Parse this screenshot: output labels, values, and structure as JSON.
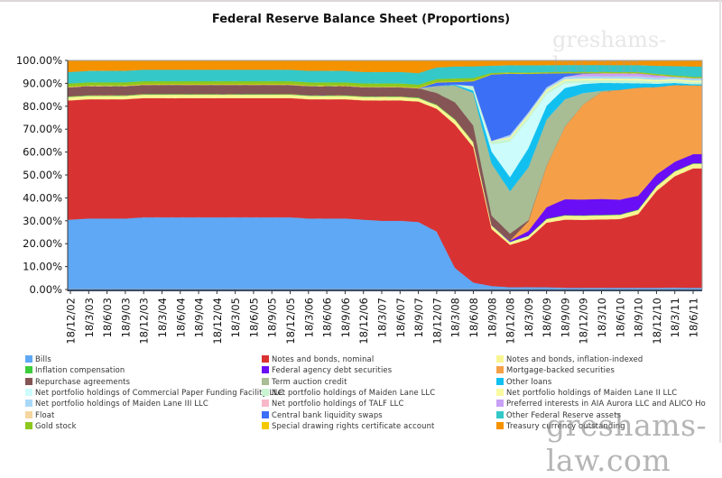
{
  "chart_data": {
    "type": "area",
    "stacked": true,
    "normalized": true,
    "title": "Federal Reserve Balance Sheet (Proportions)",
    "xlabel": "",
    "ylabel": "",
    "ylim": [
      0,
      100
    ],
    "y_ticks": [
      "0.00%",
      "10.00%",
      "20.00%",
      "30.00%",
      "40.00%",
      "50.00%",
      "60.00%",
      "70.00%",
      "80.00%",
      "90.00%",
      "100.00%"
    ],
    "grid": false,
    "legend_position": "bottom",
    "categories": [
      "18/12/02",
      "18/3/03",
      "18/6/03",
      "18/9/03",
      "18/12/03",
      "18/3/04",
      "18/6/04",
      "18/9/04",
      "18/12/04",
      "18/3/05",
      "18/6/05",
      "18/9/05",
      "18/12/05",
      "18/3/06",
      "18/6/06",
      "18/9/06",
      "18/12/06",
      "18/3/07",
      "18/6/07",
      "18/9/07",
      "18/12/07",
      "18/3/08",
      "18/6/08",
      "18/9/08",
      "18/12/08",
      "18/3/09",
      "18/6/09",
      "18/9/09",
      "18/12/09",
      "18/3/10",
      "18/6/10",
      "18/9/10",
      "18/12/10",
      "18/3/11",
      "18/6/11"
    ],
    "series": [
      {
        "name": "Bills",
        "color": "#5fa8f5",
        "values": [
          30.5,
          31,
          31,
          31,
          31.5,
          31.5,
          31.5,
          31.5,
          31.5,
          31.5,
          31.5,
          31.5,
          31.5,
          31,
          31,
          31,
          30.5,
          30,
          30,
          29.5,
          25,
          9,
          3,
          1.5,
          1,
          1,
          1,
          0.8,
          0.8,
          0.8,
          0.8,
          0.8,
          0.8,
          0.8,
          0.8
        ]
      },
      {
        "name": "Notes and bonds, nominal",
        "color": "#d93232",
        "values": [
          52,
          52,
          52,
          52,
          52,
          52,
          52,
          52,
          52,
          52,
          52,
          52,
          52,
          52,
          52,
          52,
          52,
          52.5,
          52.5,
          52.5,
          53,
          60,
          58,
          24,
          18,
          20,
          28,
          30,
          30,
          30,
          30,
          32,
          42,
          48,
          52
        ]
      },
      {
        "name": "Notes and bonds, inflation-indexed",
        "color": "#f7f591",
        "values": [
          1.5,
          1.5,
          1.5,
          1.5,
          1.5,
          1.5,
          1.5,
          1.5,
          1.5,
          1.5,
          1.5,
          1.5,
          1.5,
          1.5,
          1.5,
          1.5,
          1.5,
          1.5,
          1.5,
          1.5,
          1.5,
          2,
          2,
          1.5,
          1.2,
          1.3,
          1.5,
          1.8,
          1.8,
          1.8,
          1.8,
          1.8,
          2,
          2,
          2
        ]
      },
      {
        "name": "Inflation compensation",
        "color": "#3ccc3c",
        "values": [
          0.3,
          0.3,
          0.3,
          0.3,
          0.3,
          0.3,
          0.3,
          0.3,
          0.3,
          0.3,
          0.3,
          0.3,
          0.3,
          0.3,
          0.3,
          0.3,
          0.3,
          0.3,
          0.3,
          0.3,
          0.3,
          0.3,
          0.3,
          0.2,
          0.1,
          0.1,
          0.2,
          0.2,
          0.2,
          0.2,
          0.2,
          0.2,
          0.2,
          0.2,
          0.2
        ]
      },
      {
        "name": "Federal agency debt securities",
        "color": "#6a0ff5",
        "values": [
          0,
          0,
          0,
          0,
          0,
          0,
          0,
          0,
          0,
          0,
          0,
          0,
          0,
          0,
          0,
          0,
          0,
          0,
          0,
          0,
          0,
          0,
          0,
          0,
          0.5,
          2,
          5,
          7,
          7,
          7,
          6.5,
          6,
          5,
          4,
          4
        ]
      },
      {
        "name": "Mortgage-backed securities",
        "color": "#f5a048",
        "values": [
          0,
          0,
          0,
          0,
          0,
          0,
          0,
          0,
          0,
          0,
          0,
          0,
          0,
          0,
          0,
          0,
          0,
          0,
          0,
          0,
          0,
          0,
          0,
          0,
          0,
          4,
          18,
          32,
          42,
          47,
          48,
          47,
          38,
          33,
          30
        ]
      },
      {
        "name": "Repurchase agreements",
        "color": "#855555",
        "values": [
          4,
          4,
          4,
          4,
          4,
          4,
          4,
          4,
          4,
          4,
          4,
          4,
          4,
          4,
          4,
          4,
          4,
          4,
          4,
          4,
          5,
          7,
          7,
          4,
          3,
          0.5,
          0,
          0,
          0,
          0,
          0,
          0,
          0,
          0,
          0
        ]
      },
      {
        "name": "Term auction credit",
        "color": "#a8bd94",
        "values": [
          0,
          0,
          0,
          0,
          0,
          0,
          0,
          0,
          0,
          0,
          0,
          0,
          0,
          0,
          0,
          0,
          0,
          0,
          0,
          0,
          3,
          7,
          14,
          22,
          18,
          22,
          20,
          12,
          5,
          0.5,
          0,
          0,
          0,
          0,
          0
        ]
      },
      {
        "name": "Other loans",
        "color": "#12c0f0",
        "values": [
          0,
          0,
          0,
          0,
          0,
          0,
          0,
          0,
          0,
          0,
          0,
          0,
          0,
          0,
          0,
          0,
          0,
          0,
          0,
          0,
          0,
          0.5,
          1,
          5,
          6,
          8,
          6,
          5,
          4,
          3.5,
          3,
          2,
          1.5,
          1,
          0.5
        ]
      },
      {
        "name": "Net portfolio holdings of Commercial Paper Funding Facility LLC",
        "color": "#ccfcfc",
        "values": [
          0,
          0,
          0,
          0,
          0,
          0,
          0,
          0,
          0,
          0,
          0,
          0,
          0,
          0,
          0,
          0,
          0,
          0,
          0,
          0,
          0,
          0,
          0,
          3,
          15,
          12,
          5,
          2,
          0.5,
          0,
          0,
          0,
          0,
          0,
          0
        ]
      },
      {
        "name": "Net portfolio holdings of Maiden Lane LLC",
        "color": "#c8f5d2",
        "values": [
          0,
          0,
          0,
          0,
          0,
          0,
          0,
          0,
          0,
          0,
          0,
          0,
          0,
          0,
          0,
          0,
          0,
          0,
          0,
          0,
          0,
          0,
          2,
          1.5,
          1.2,
          1.2,
          1.2,
          1.2,
          1.2,
          1.2,
          1.2,
          1.2,
          1,
          1,
          1
        ]
      },
      {
        "name": "Net portfolio holdings of Maiden Lane II LLC",
        "color": "#fafaa0",
        "values": [
          0,
          0,
          0,
          0,
          0,
          0,
          0,
          0,
          0,
          0,
          0,
          0,
          0,
          0,
          0,
          0,
          0,
          0,
          0,
          0,
          0,
          0,
          0,
          0,
          0.8,
          0.8,
          0.8,
          0.7,
          0.7,
          0.7,
          0.7,
          0.7,
          0.6,
          0.6,
          0.6
        ]
      },
      {
        "name": "Net portfolio holdings of Maiden Lane III LLC",
        "color": "#a8d8f8",
        "values": [
          0,
          0,
          0,
          0,
          0,
          0,
          0,
          0,
          0,
          0,
          0,
          0,
          0,
          0,
          0,
          0,
          0,
          0,
          0,
          0,
          0,
          0,
          0,
          0,
          1,
          1,
          1,
          1,
          1,
          1,
          1,
          1,
          0.9,
          0.9,
          0.9
        ]
      },
      {
        "name": "Net portfolio holdings of TALF LLC",
        "color": "#f8b8c8",
        "values": [
          0,
          0,
          0,
          0,
          0,
          0,
          0,
          0,
          0,
          0,
          0,
          0,
          0,
          0,
          0,
          0,
          0,
          0,
          0,
          0,
          0,
          0,
          0,
          0,
          0,
          0,
          0,
          0.1,
          0.1,
          0.1,
          0.1,
          0.1,
          0.1,
          0.1,
          0.1
        ]
      },
      {
        "name": "Preferred interests in AIA Aurora LLC and ALICO Holdings LLC",
        "color": "#c8a0f5",
        "values": [
          0,
          0,
          0,
          0,
          0,
          0,
          0,
          0,
          0,
          0,
          0,
          0,
          0,
          0,
          0,
          0,
          0,
          0,
          0,
          0,
          0,
          0,
          0,
          0,
          0,
          0,
          0,
          0,
          1,
          1.2,
          1.2,
          1.2,
          1,
          0,
          0
        ]
      },
      {
        "name": "Float",
        "color": "#f5d6a0",
        "values": [
          0,
          0,
          0,
          0,
          0,
          0,
          0,
          0,
          0,
          0,
          0,
          0,
          0,
          0,
          0,
          0,
          0,
          0,
          0,
          0,
          0,
          0,
          0,
          0,
          0,
          0,
          0,
          0,
          0,
          0,
          0,
          0,
          0,
          0,
          0
        ]
      },
      {
        "name": "Central bank liquidity swaps",
        "color": "#3b6ff5",
        "values": [
          0,
          0,
          0,
          0,
          0,
          0,
          0,
          0,
          0,
          0,
          0,
          0,
          0,
          0,
          0,
          0,
          0,
          0,
          0,
          0,
          1.5,
          1,
          2,
          28,
          26,
          16,
          6,
          1.5,
          0.3,
          0,
          0,
          0,
          0,
          0,
          0
        ]
      },
      {
        "name": "Special drawing rights certificate account",
        "color": "#f5c800",
        "values": [
          0.3,
          0.3,
          0.3,
          0.3,
          0.3,
          0.3,
          0.3,
          0.3,
          0.3,
          0.3,
          0.3,
          0.3,
          0.3,
          0.3,
          0.3,
          0.3,
          0.3,
          0.3,
          0.3,
          0.3,
          0.3,
          0.3,
          0.3,
          0.2,
          0.2,
          0.2,
          0.2,
          0.2,
          0.2,
          0.2,
          0.2,
          0.2,
          0.2,
          0.2,
          0.2
        ]
      },
      {
        "name": "Gold stock",
        "color": "#8cc81e",
        "values": [
          1.3,
          1.3,
          1.3,
          1.3,
          1.3,
          1.3,
          1.3,
          1.3,
          1.3,
          1.3,
          1.3,
          1.3,
          1.3,
          1.3,
          1.3,
          1.3,
          1.3,
          1.3,
          1.3,
          1.3,
          1.2,
          1.2,
          1.1,
          0.5,
          0.4,
          0.4,
          0.4,
          0.4,
          0.4,
          0.4,
          0.4,
          0.4,
          0.4,
          0.4,
          0.4
        ]
      },
      {
        "name": "Other Federal Reserve assets",
        "color": "#35c8c8",
        "values": [
          5,
          5,
          5,
          5,
          5,
          5,
          5,
          5,
          5,
          5,
          5,
          5,
          5,
          5,
          5,
          5,
          5,
          5,
          5,
          5,
          5,
          5,
          5,
          3,
          3,
          3,
          3,
          3,
          3,
          3,
          3,
          3,
          3.5,
          4,
          4.5
        ]
      },
      {
        "name": "Treasury currency outstanding",
        "color": "#f59200",
        "values": [
          5,
          4.5,
          4.5,
          4.5,
          4,
          4,
          4,
          4,
          4,
          4,
          4,
          4,
          4,
          4.5,
          4.5,
          4.5,
          5,
          5,
          5,
          5.5,
          3,
          2.5,
          2.5,
          2.2,
          2,
          2,
          2,
          2,
          2,
          2,
          2,
          2,
          2.3,
          2.4,
          2.6
        ]
      }
    ]
  },
  "legend": {
    "items": [
      {
        "label": "Bills",
        "color": "#5fa8f5"
      },
      {
        "label": "Notes and bonds, nominal",
        "color": "#d93232"
      },
      {
        "label": "Notes and bonds, inflation-indexed",
        "color": "#f7f591"
      },
      {
        "label": "Inflation compensation",
        "color": "#3ccc3c"
      },
      {
        "label": "Federal agency debt securities",
        "color": "#6a0ff5"
      },
      {
        "label": "Mortgage-backed securities",
        "color": "#f5a048"
      },
      {
        "label": "Repurchase agreements",
        "color": "#855555"
      },
      {
        "label": "Term auction credit",
        "color": "#a8bd94"
      },
      {
        "label": "Other loans",
        "color": "#12c0f0"
      },
      {
        "label": "Net portfolio holdings of Commercial Paper Funding Facility LLC",
        "color": "#ccfcfc"
      },
      {
        "label": "Net portfolio holdings of Maiden Lane LLC",
        "color": "#c8f5d2"
      },
      {
        "label": "Net portfolio holdings of Maiden Lane II LLC",
        "color": "#fafaa0"
      },
      {
        "label": "Net portfolio holdings of Maiden Lane III LLC",
        "color": "#a8d8f8"
      },
      {
        "label": "Net portfolio holdings of TALF LLC",
        "color": "#f8b8c8"
      },
      {
        "label": "Preferred interests in AIA Aurora LLC and ALICO Ho",
        "color": "#c8a0f5"
      },
      {
        "label": "Float",
        "color": "#f5d6a0"
      },
      {
        "label": "Central bank liquidity swaps",
        "color": "#3b6ff5"
      },
      {
        "label": "Other Federal Reserve assets",
        "color": "#35c8c8"
      },
      {
        "label": "Gold stock",
        "color": "#8cc81e"
      },
      {
        "label": "Special drawing rights certificate account",
        "color": "#f5c800"
      },
      {
        "label": "Treasury currency outstanding",
        "color": "#f59200"
      }
    ]
  },
  "watermark": "greshams-law.com"
}
